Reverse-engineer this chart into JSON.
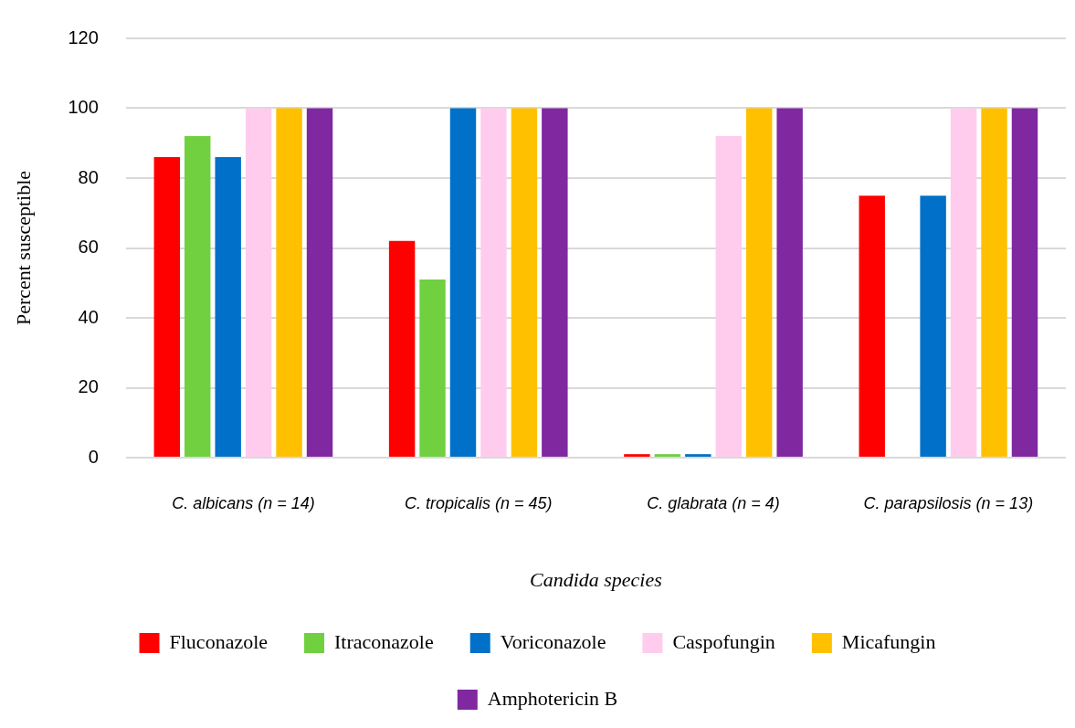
{
  "chart_data": {
    "type": "bar",
    "xlabel": "Candida species",
    "ylabel": "Percent susceptible",
    "categories": [
      "C. albicans (n = 14)",
      "C. tropicalis (n = 45)",
      "C. glabrata (n = 4)",
      "C. parapsilosis (n = 13)"
    ],
    "series": [
      {
        "name": "Fluconazole",
        "color": "#ff0000",
        "values": [
          86,
          62,
          1,
          75
        ]
      },
      {
        "name": "Itraconazole",
        "color": "#70d040",
        "values": [
          92,
          51,
          1,
          null
        ]
      },
      {
        "name": "Voriconazole",
        "color": "#0070c8",
        "values": [
          86,
          100,
          1,
          75
        ]
      },
      {
        "name": "Caspofungin",
        "color": "#ffccee",
        "values": [
          100,
          100,
          92,
          100
        ]
      },
      {
        "name": "Micafungin",
        "color": "#ffc000",
        "values": [
          100,
          100,
          100,
          100
        ]
      },
      {
        "name": "Amphotericin B",
        "color": "#7f28a0",
        "values": [
          100,
          100,
          100,
          100
        ]
      }
    ],
    "ylim": [
      0,
      120
    ],
    "yticks": [
      0,
      20,
      40,
      60,
      80,
      100,
      120
    ],
    "grid": "y",
    "legend": "bottom"
  }
}
